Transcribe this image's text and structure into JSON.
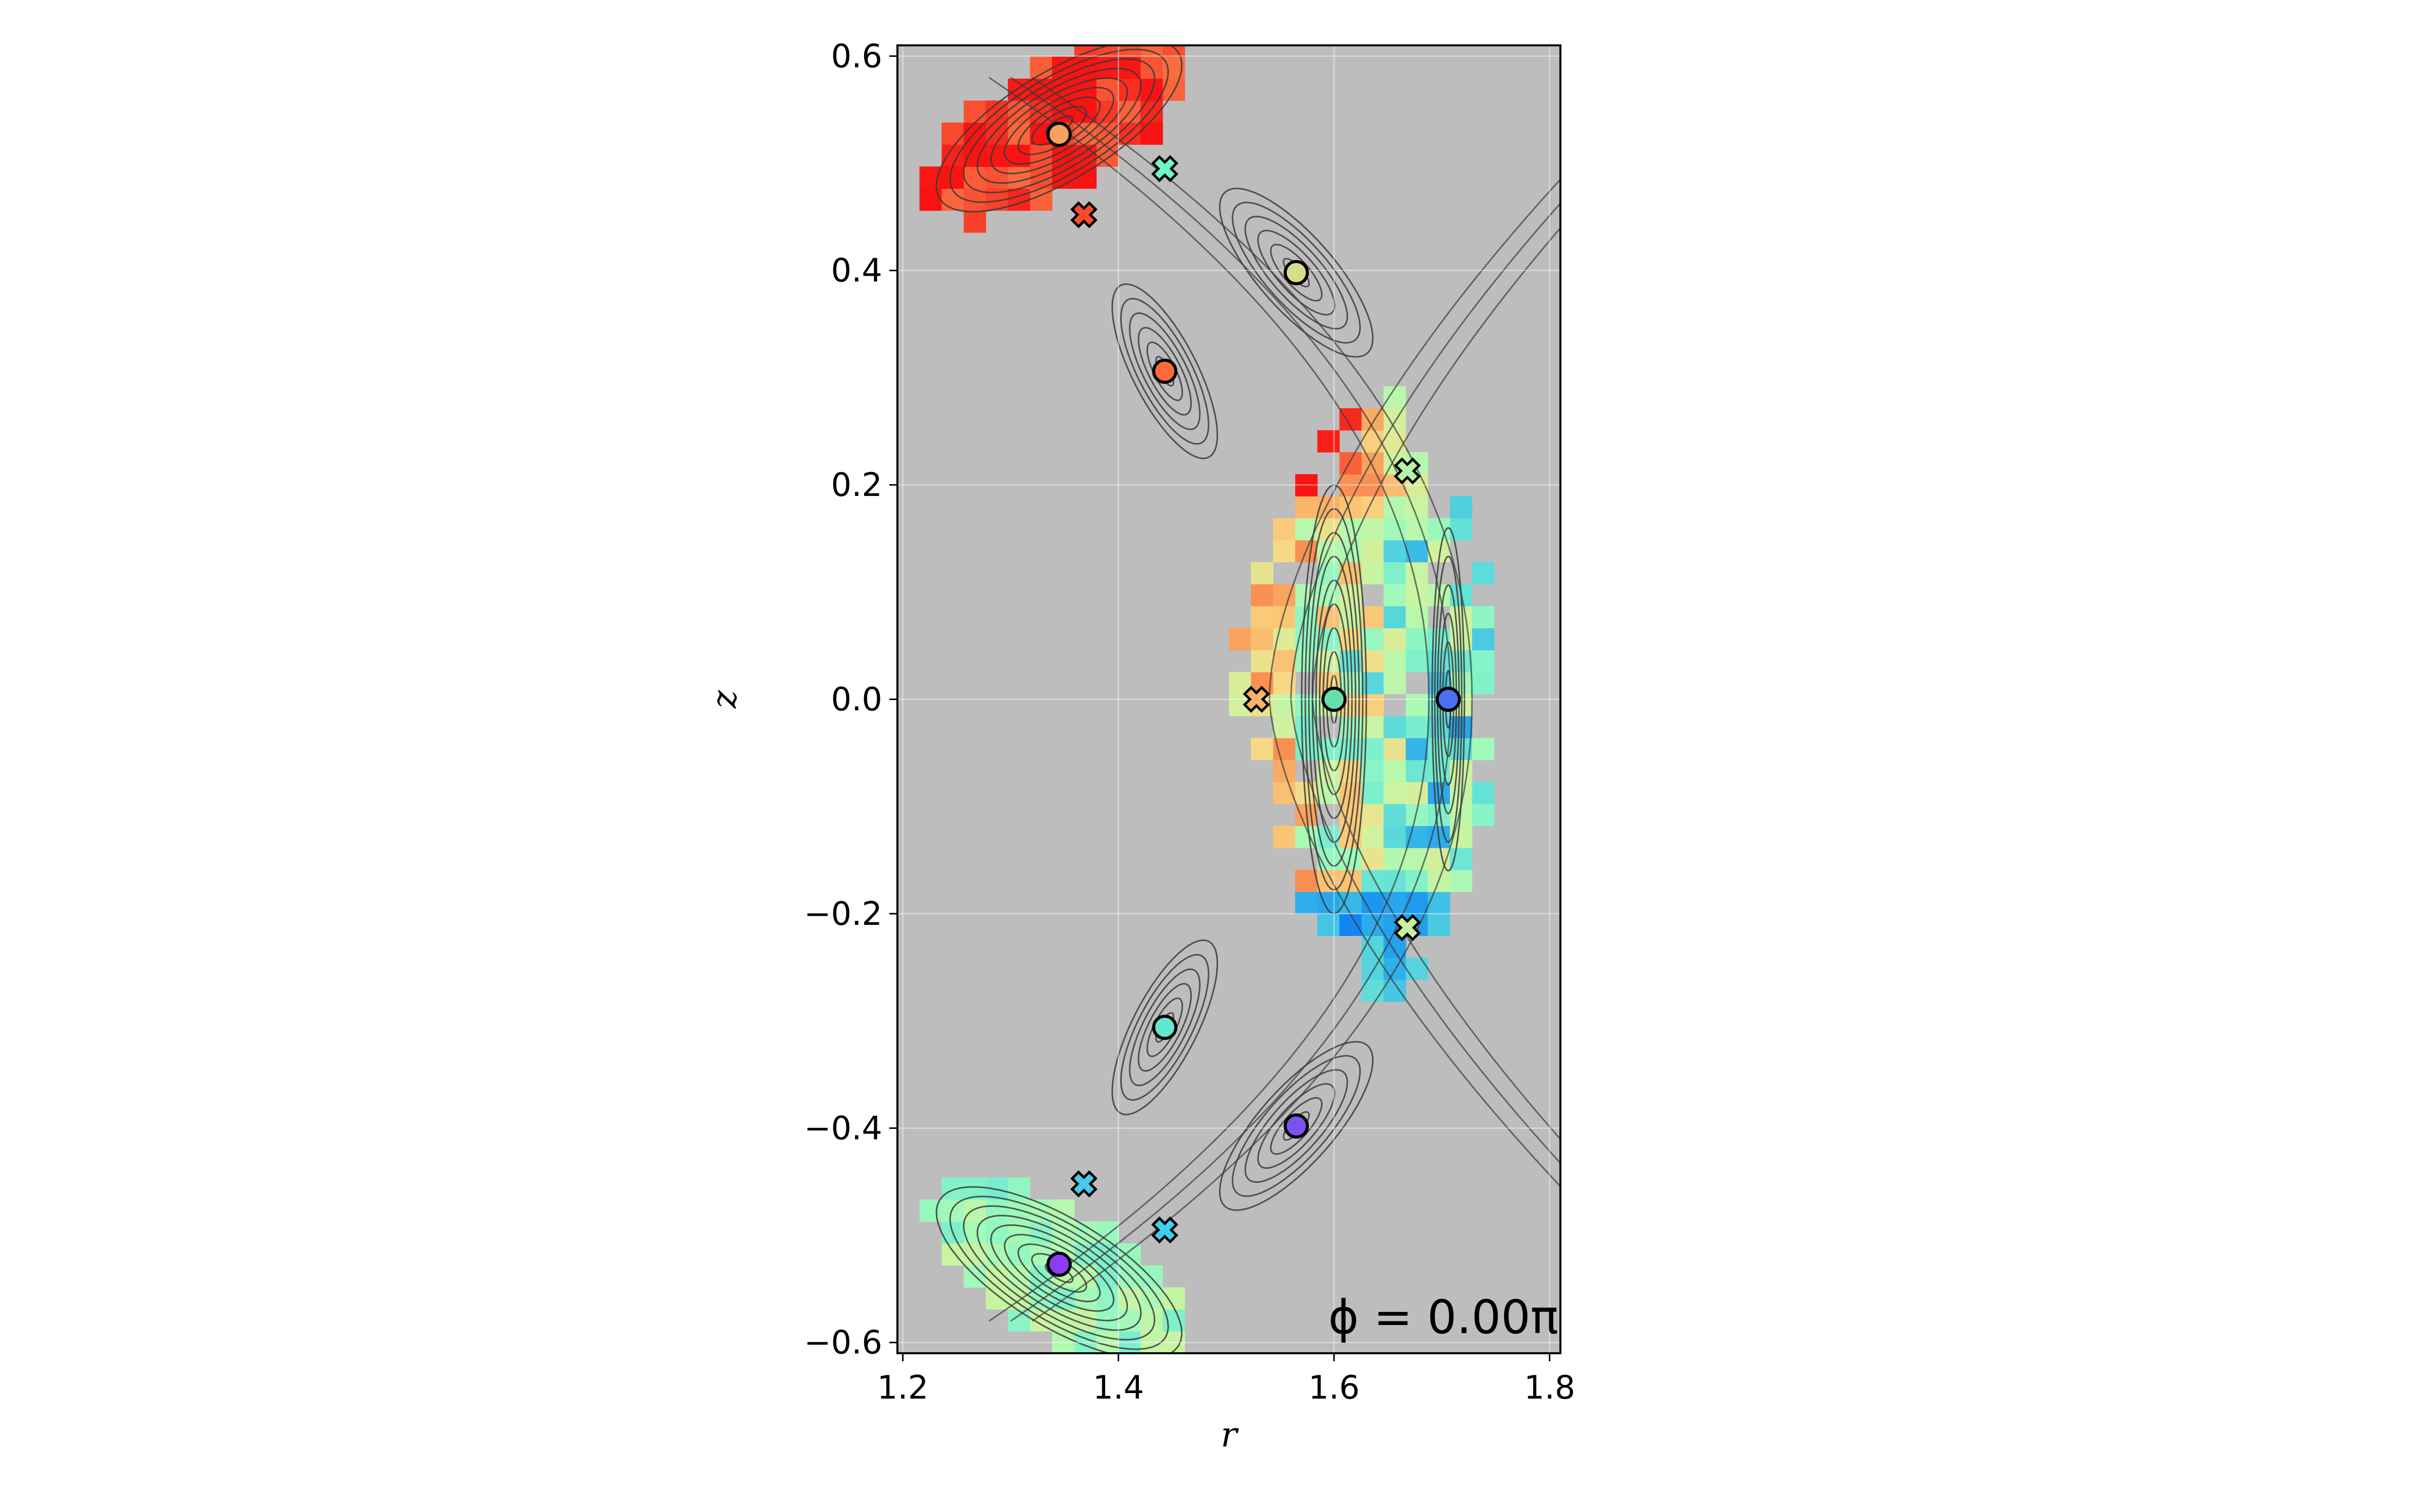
{
  "chart_data": {
    "type": "scatter",
    "title": "",
    "xlabel": "r",
    "ylabel": "z",
    "xlim": [
      1.195,
      1.81
    ],
    "ylim": [
      -0.61,
      0.61
    ],
    "xticks": [
      1.2,
      1.4,
      1.6,
      1.8
    ],
    "yticks": [
      -0.6,
      -0.4,
      -0.2,
      0.0,
      0.2,
      0.4,
      0.6
    ],
    "xtick_labels": [
      "1.2",
      "1.4",
      "1.6",
      "1.8"
    ],
    "ytick_labels": [
      "−0.6",
      "−0.4",
      "−0.2",
      "0.0",
      "0.2",
      "0.4",
      "0.6"
    ],
    "grid": true,
    "background_color": "#bdbdbd",
    "annotation": "ϕ = 0.00π",
    "colormap": "rainbow",
    "o_points": [
      {
        "r": 1.345,
        "z": 0.527,
        "color": "#f7a25c"
      },
      {
        "r": 1.565,
        "z": 0.398,
        "color": "#d9dd8a"
      },
      {
        "r": 1.443,
        "z": 0.306,
        "color": "#ff6a3a"
      },
      {
        "r": 1.6,
        "z": 0.0,
        "color": "#66e0a8"
      },
      {
        "r": 1.706,
        "z": 0.0,
        "color": "#4a6ff2"
      },
      {
        "r": 1.443,
        "z": -0.306,
        "color": "#5ee8d0"
      },
      {
        "r": 1.565,
        "z": -0.398,
        "color": "#7b52f0"
      },
      {
        "r": 1.345,
        "z": -0.527,
        "color": "#8b3cf5"
      }
    ],
    "x_points": [
      {
        "r": 1.443,
        "z": 0.495,
        "color": "#6ff5cc"
      },
      {
        "r": 1.368,
        "z": 0.452,
        "color": "#ff4a2a"
      },
      {
        "r": 1.668,
        "z": 0.213,
        "color": "#b8f0a8"
      },
      {
        "r": 1.528,
        "z": 0.0,
        "color": "#f5b46a"
      },
      {
        "r": 1.668,
        "z": -0.213,
        "color": "#c8f0a0"
      },
      {
        "r": 1.368,
        "z": -0.452,
        "color": "#4ac8f0"
      },
      {
        "r": 1.443,
        "z": -0.495,
        "color": "#3cd0f0"
      }
    ]
  }
}
